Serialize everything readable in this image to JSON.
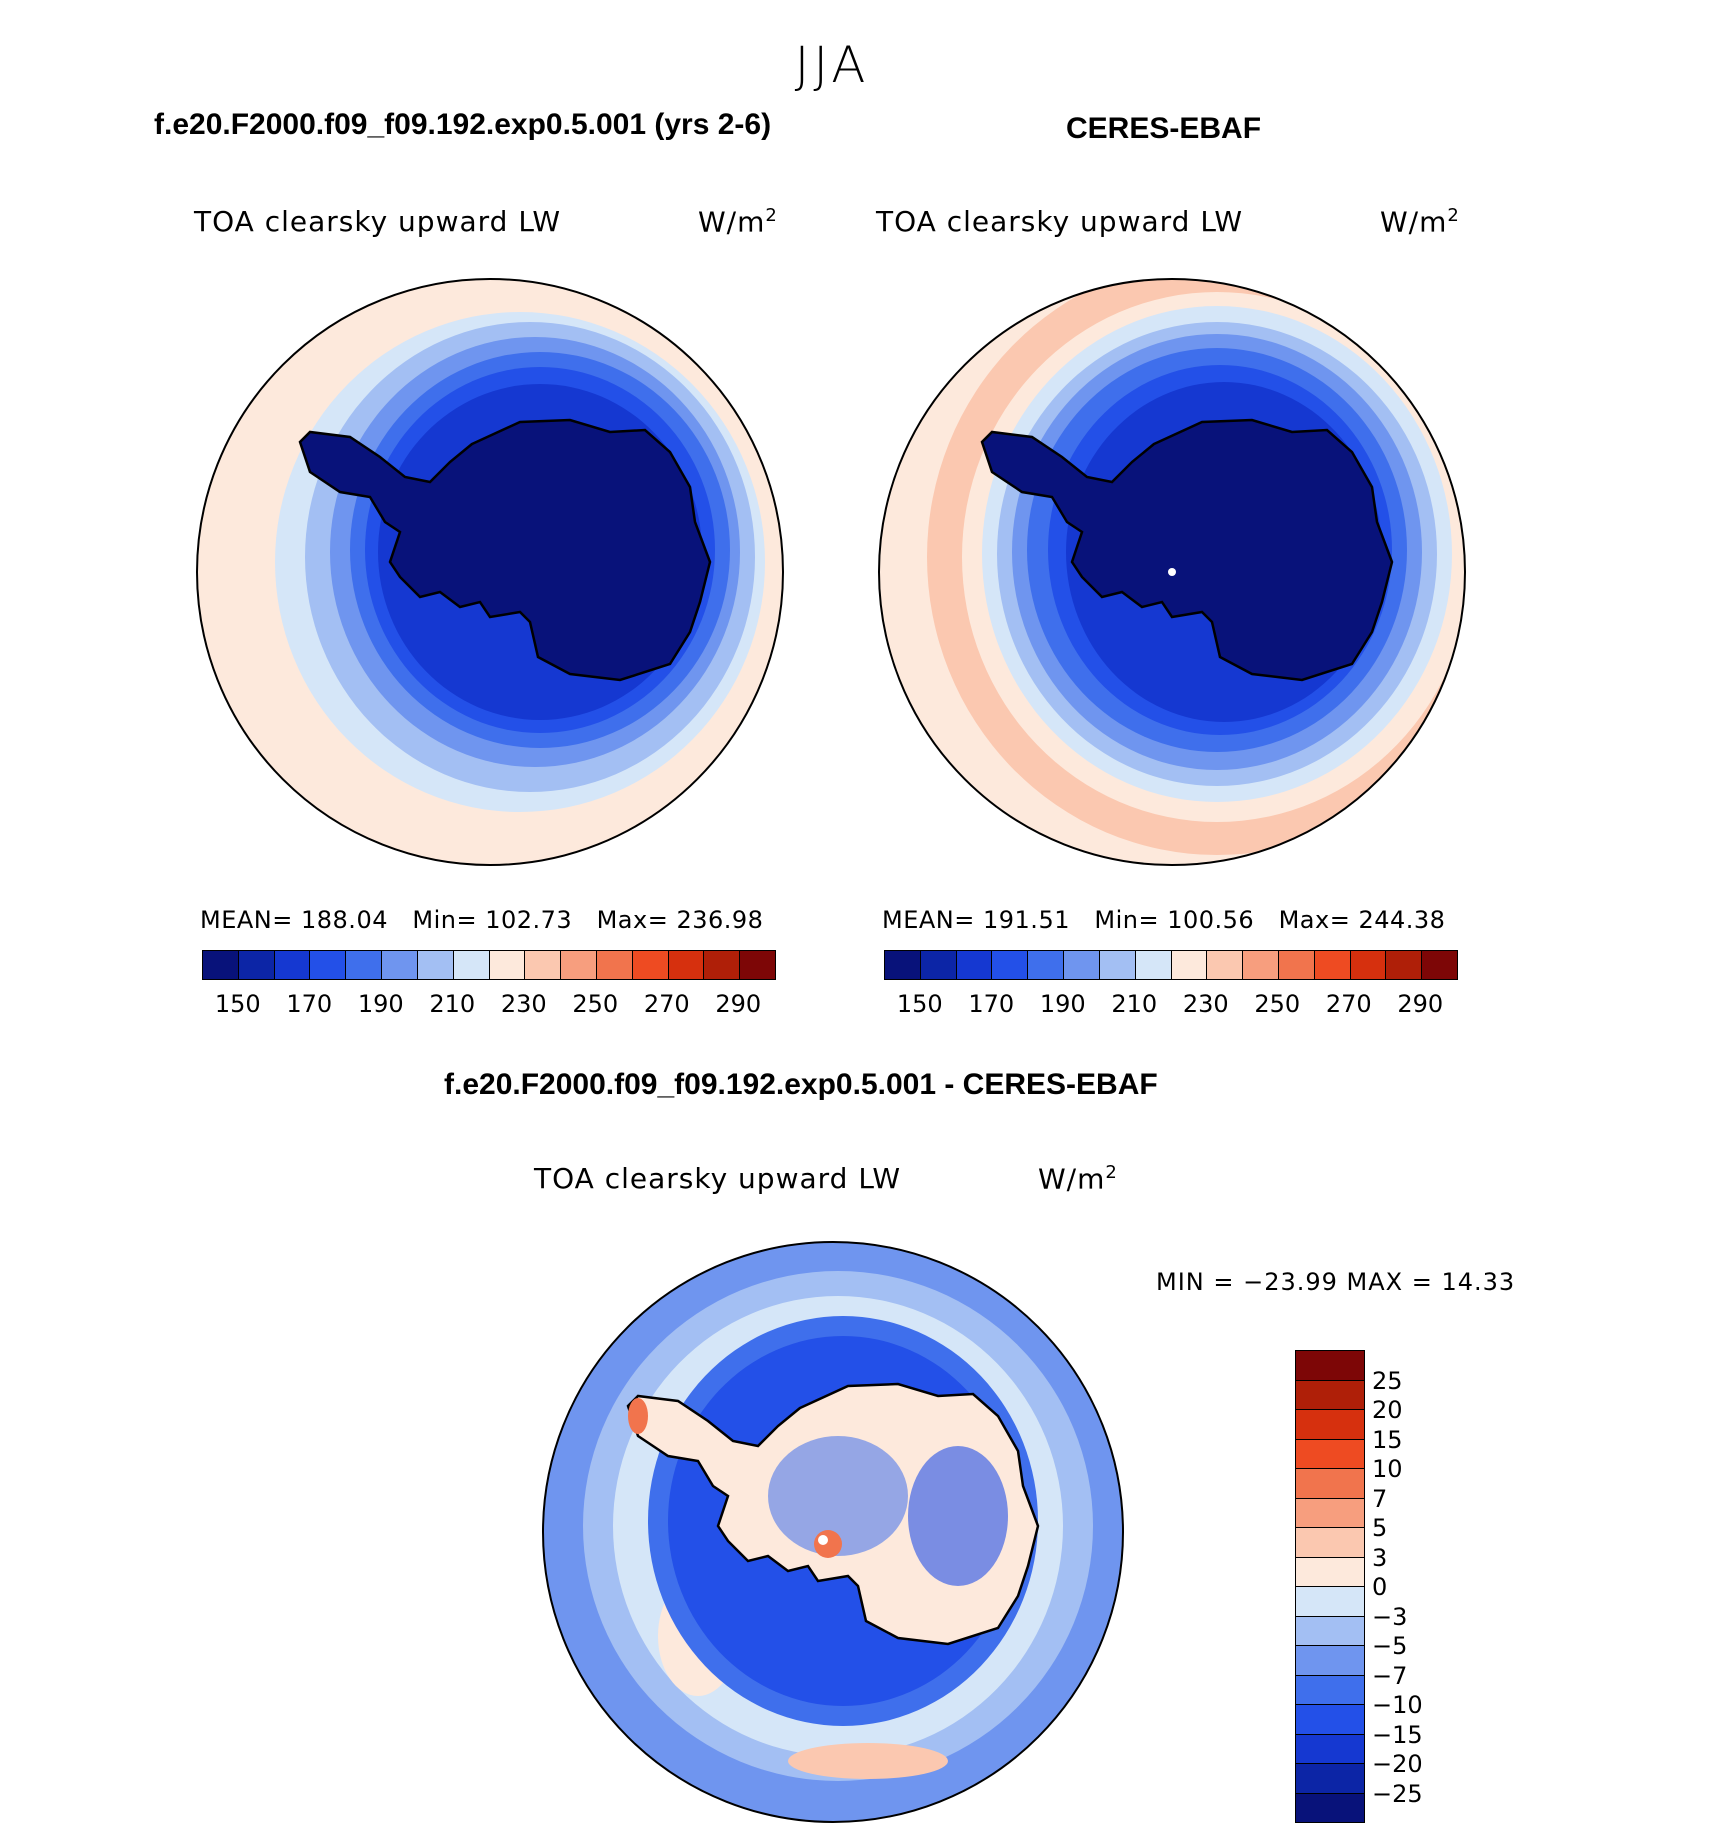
{
  "season": "JJA",
  "colors": {
    "scale": [
      "#08127a",
      "#0c25a6",
      "#1538d1",
      "#2350e8",
      "#3f6fec",
      "#6f95ef",
      "#a3bff3",
      "#d5e6f8",
      "#fde9dc",
      "#fbc8b0",
      "#f79e7e",
      "#f1744d",
      "#ee4b22",
      "#d6300e",
      "#af1f08",
      "#7d0606"
    ],
    "continent": "#08127a",
    "coastline": "#000000"
  },
  "panels": [
    {
      "heading": "f.e20.F2000.f09_f09.192.exp0.5.001 (yrs 2-6)",
      "variable": "TOA clearsky upward LW",
      "units": "W/m",
      "units_sup": "2",
      "mean_label": "MEAN=",
      "mean": "188.04",
      "min_label": "Min=",
      "min": "102.73",
      "max_label": "Max=",
      "max": "236.98"
    },
    {
      "heading": "CERES-EBAF",
      "variable": "TOA clearsky upward LW",
      "units": "W/m",
      "units_sup": "2",
      "mean_label": "MEAN=",
      "mean": "191.51",
      "min_label": "Min=",
      "min": "100.56",
      "max_label": "Max=",
      "max": "244.38"
    }
  ],
  "diff": {
    "heading": "f.e20.F2000.f09_f09.192.exp0.5.001 - CERES-EBAF",
    "variable": "TOA clearsky upward LW",
    "units": "W/m",
    "units_sup": "2",
    "minmax": "MIN = −23.99 MAX =   14.33"
  },
  "chart_data": [
    {
      "type": "heatmap",
      "projection": "south polar stereographic",
      "title": "TOA clearsky upward LW",
      "units": "W/m2",
      "mean": 188.04,
      "min": 102.73,
      "max": 236.98,
      "colorbar_levels": [
        150,
        160,
        170,
        180,
        190,
        200,
        210,
        220,
        230,
        240,
        250,
        260,
        270,
        280,
        290
      ],
      "colorbar_tick_labels": [
        "150",
        "170",
        "190",
        "210",
        "230",
        "250",
        "270",
        "290"
      ]
    },
    {
      "type": "heatmap",
      "projection": "south polar stereographic",
      "title": "TOA clearsky upward LW",
      "units": "W/m2",
      "mean": 191.51,
      "min": 100.56,
      "max": 244.38,
      "colorbar_levels": [
        150,
        160,
        170,
        180,
        190,
        200,
        210,
        220,
        230,
        240,
        250,
        260,
        270,
        280,
        290
      ],
      "colorbar_tick_labels": [
        "150",
        "170",
        "190",
        "210",
        "230",
        "250",
        "270",
        "290"
      ]
    },
    {
      "type": "heatmap",
      "projection": "south polar stereographic",
      "title": "TOA clearsky upward LW",
      "units": "W/m2",
      "min": -23.99,
      "max": 14.33,
      "colorbar_levels": [
        25,
        20,
        15,
        10,
        7,
        5,
        3,
        0,
        -3,
        -5,
        -7,
        -10,
        -15,
        -20,
        -25
      ],
      "colorbar_tick_labels": [
        "25",
        "20",
        "15",
        "10",
        "7",
        "5",
        "3",
        "0",
        "−3",
        "−5",
        "−7",
        "−10",
        "−15",
        "−20",
        "−25"
      ]
    }
  ]
}
